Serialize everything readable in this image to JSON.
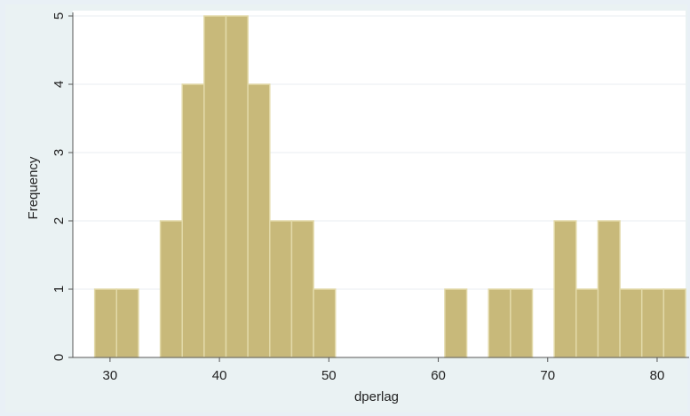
{
  "chart_data": {
    "type": "bar",
    "subtype": "histogram",
    "xlabel": "dperlag",
    "ylabel": "Frequency",
    "xlim": [
      26.6,
      82.6
    ],
    "ylim": [
      0,
      5
    ],
    "xticks": [
      30,
      40,
      50,
      60,
      70,
      80
    ],
    "yticks": [
      0,
      1,
      2,
      3,
      4,
      5
    ],
    "bin_width": 2,
    "grid": true,
    "bar_color": "#c8b97a",
    "bar_edge_color": "#e2d9a8",
    "bins": [
      {
        "start": 28.6,
        "value": 1
      },
      {
        "start": 30.6,
        "value": 1
      },
      {
        "start": 34.6,
        "value": 2
      },
      {
        "start": 36.6,
        "value": 4
      },
      {
        "start": 38.6,
        "value": 5
      },
      {
        "start": 40.6,
        "value": 5
      },
      {
        "start": 42.6,
        "value": 4
      },
      {
        "start": 44.6,
        "value": 2
      },
      {
        "start": 46.6,
        "value": 2
      },
      {
        "start": 48.6,
        "value": 1
      },
      {
        "start": 60.6,
        "value": 1
      },
      {
        "start": 64.6,
        "value": 1
      },
      {
        "start": 66.6,
        "value": 1
      },
      {
        "start": 70.6,
        "value": 2
      },
      {
        "start": 72.6,
        "value": 1
      },
      {
        "start": 74.6,
        "value": 2
      },
      {
        "start": 76.6,
        "value": 1
      },
      {
        "start": 78.6,
        "value": 1
      },
      {
        "start": 80.6,
        "value": 1
      }
    ]
  }
}
